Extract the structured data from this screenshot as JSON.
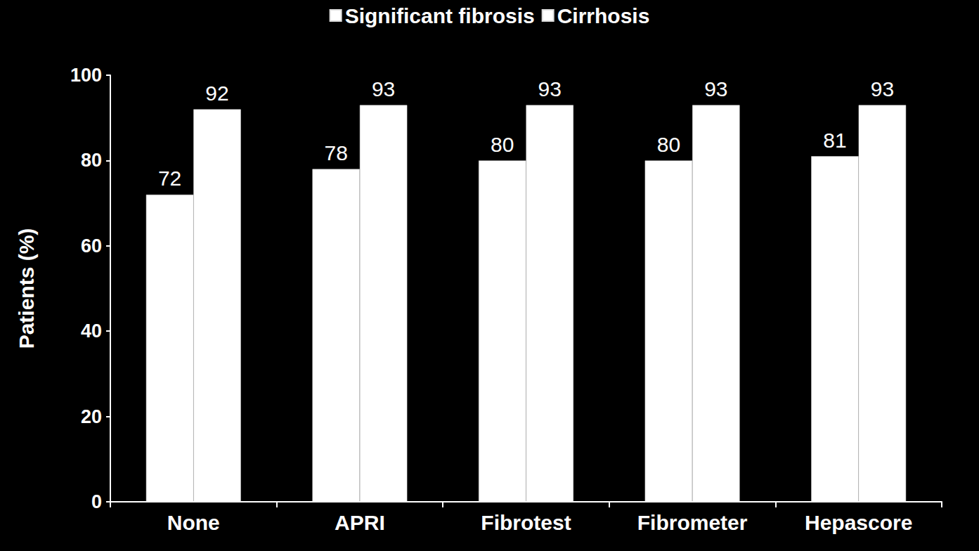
{
  "chart_data": {
    "type": "bar",
    "categories": [
      "None",
      "APRI",
      "Fibrotest",
      "Fibrometer",
      "Hepascore"
    ],
    "series": [
      {
        "name": "Significant fibrosis",
        "color": "#ffffff",
        "values": [
          72,
          78,
          80,
          80,
          81
        ]
      },
      {
        "name": "Cirrhosis",
        "color": "#ffffff",
        "values": [
          92,
          93,
          93,
          93,
          93
        ]
      }
    ],
    "y_label": "Patients (%)",
    "ylim": [
      0,
      100
    ],
    "yticks": [
      0,
      20,
      40,
      60,
      80,
      100
    ],
    "grid": false,
    "legend": "top",
    "data_labels": true
  }
}
